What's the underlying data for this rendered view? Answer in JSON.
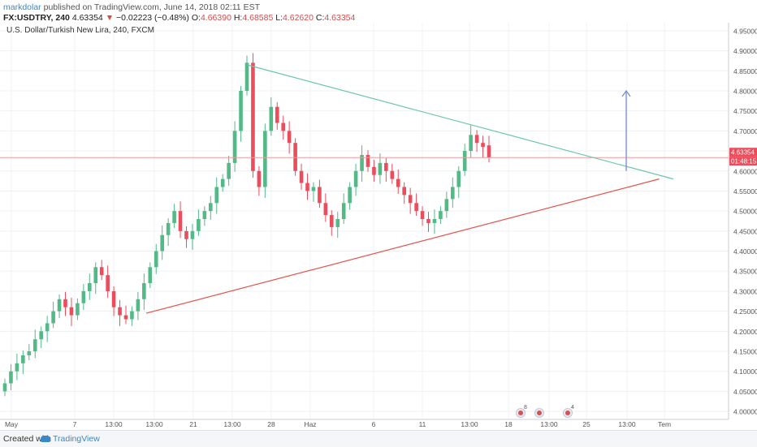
{
  "header": {
    "author": "markdolar",
    "published": "published on TradingView.com, June 14, 2018 02:11 EST",
    "symbol": "FX:USDTRY, 240",
    "last": "4.63354",
    "arrow": "▼",
    "change": "−0.02223 (−0.48%)",
    "open_label": "O:",
    "open": "4.66390",
    "high_label": "H:",
    "high": "4.68585",
    "low_label": "L:",
    "low": "4.62620",
    "close_label": "C:",
    "close": "4.63354"
  },
  "instrument_title": "U.S. Dollar/Turkish New Lira, 240, FXCM",
  "footer": {
    "created": "Created with",
    "brand": "TradingView"
  },
  "colors": {
    "up": "#53b987",
    "down": "#eb4d5c",
    "upper_line": "#6cc6a8",
    "lower_line": "#e5534b",
    "price_line": "#f19a9a",
    "price_tag": "#eb4d5c",
    "arrow": "#7a8fc9",
    "grid": "#eef0f3",
    "axis_text": "#555555"
  },
  "chart_data": {
    "type": "candlestick",
    "title": "U.S. Dollar/Turkish New Lira, 240, FXCM",
    "ylim": [
      3.98,
      4.97
    ],
    "y_ticks": [
      "4.95000",
      "4.90000",
      "4.85000",
      "4.80000",
      "4.75000",
      "4.70000",
      "4.65000",
      "4.60000",
      "4.55000",
      "4.50000",
      "4.45000",
      "4.40000",
      "4.35000",
      "4.30000",
      "4.25000",
      "4.20000",
      "4.15000",
      "4.10000",
      "4.05000",
      "4.00000"
    ],
    "x_labels": [
      "May",
      "7",
      "13:00",
      "13:00",
      "21",
      "13:00",
      "28",
      "Haz",
      "6",
      "11",
      "13:00",
      "18",
      "13:00",
      "25",
      "13:00",
      "Tem"
    ],
    "last_price_tag": "4.63354",
    "countdown_tag": "01:48:15",
    "event_badges": [
      "8",
      "",
      "4"
    ],
    "closes": [
      4.07,
      4.1,
      4.12,
      4.14,
      4.15,
      4.18,
      4.2,
      4.22,
      4.25,
      4.28,
      4.26,
      4.24,
      4.27,
      4.3,
      4.32,
      4.36,
      4.34,
      4.3,
      4.26,
      4.24,
      4.23,
      4.25,
      4.28,
      4.32,
      4.36,
      4.4,
      4.44,
      4.47,
      4.5,
      4.45,
      4.43,
      4.45,
      4.48,
      4.5,
      4.52,
      4.56,
      4.58,
      4.62,
      4.7,
      4.8,
      4.87,
      4.6,
      4.56,
      4.7,
      4.76,
      4.72,
      4.7,
      4.67,
      4.6,
      4.57,
      4.55,
      4.56,
      4.52,
      4.49,
      4.46,
      4.48,
      4.52,
      4.56,
      4.6,
      4.64,
      4.61,
      4.59,
      4.62,
      4.6,
      4.58,
      4.56,
      4.54,
      4.52,
      4.5,
      4.48,
      4.47,
      4.48,
      4.5,
      4.53,
      4.56,
      4.6,
      4.65,
      4.69,
      4.67,
      4.66,
      4.6335
    ],
    "opens": [
      4.05,
      4.07,
      4.1,
      4.12,
      4.14,
      4.15,
      4.18,
      4.2,
      4.22,
      4.25,
      4.28,
      4.26,
      4.24,
      4.27,
      4.3,
      4.32,
      4.36,
      4.34,
      4.3,
      4.26,
      4.24,
      4.23,
      4.25,
      4.28,
      4.32,
      4.36,
      4.4,
      4.44,
      4.47,
      4.5,
      4.45,
      4.43,
      4.45,
      4.48,
      4.5,
      4.52,
      4.56,
      4.58,
      4.62,
      4.7,
      4.8,
      4.87,
      4.6,
      4.56,
      4.7,
      4.76,
      4.72,
      4.7,
      4.67,
      4.6,
      4.57,
      4.55,
      4.56,
      4.52,
      4.49,
      4.46,
      4.48,
      4.52,
      4.56,
      4.6,
      4.64,
      4.61,
      4.59,
      4.62,
      4.6,
      4.58,
      4.56,
      4.54,
      4.52,
      4.5,
      4.48,
      4.47,
      4.48,
      4.5,
      4.53,
      4.56,
      4.6,
      4.65,
      4.69,
      4.67,
      4.6639
    ],
    "trend_upper": {
      "from": [
        40,
        4.865
      ],
      "to": [
        100,
        4.58
      ]
    },
    "trend_lower": {
      "from": [
        20,
        4.245
      ],
      "to": [
        99,
        4.58
      ]
    },
    "target_arrow": {
      "x": 94.5,
      "from": 4.6,
      "to": 4.8
    },
    "price_line": 4.63354
  }
}
